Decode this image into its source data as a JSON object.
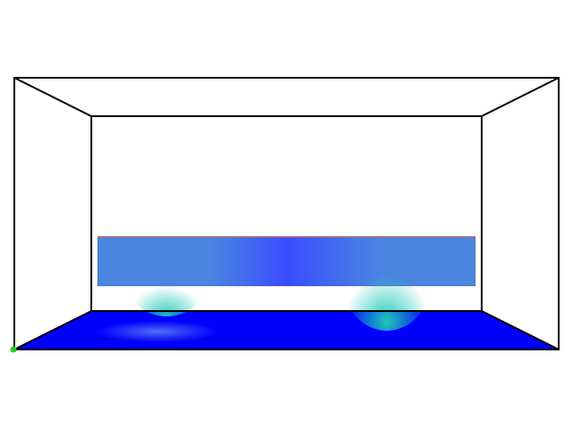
{
  "scene": {
    "background_color": "#ffffff",
    "edge_color": "#000000",
    "floor_color": "#0000ff",
    "floor_highlight_color": "#5a7cf0",
    "origin_marker_color": "#22cc22",
    "object_top_color": "#c87878",
    "object_base_color": "#3a4cff",
    "object_mid_color": "#4a86e0",
    "object_hot_color": "#20c8b8"
  }
}
